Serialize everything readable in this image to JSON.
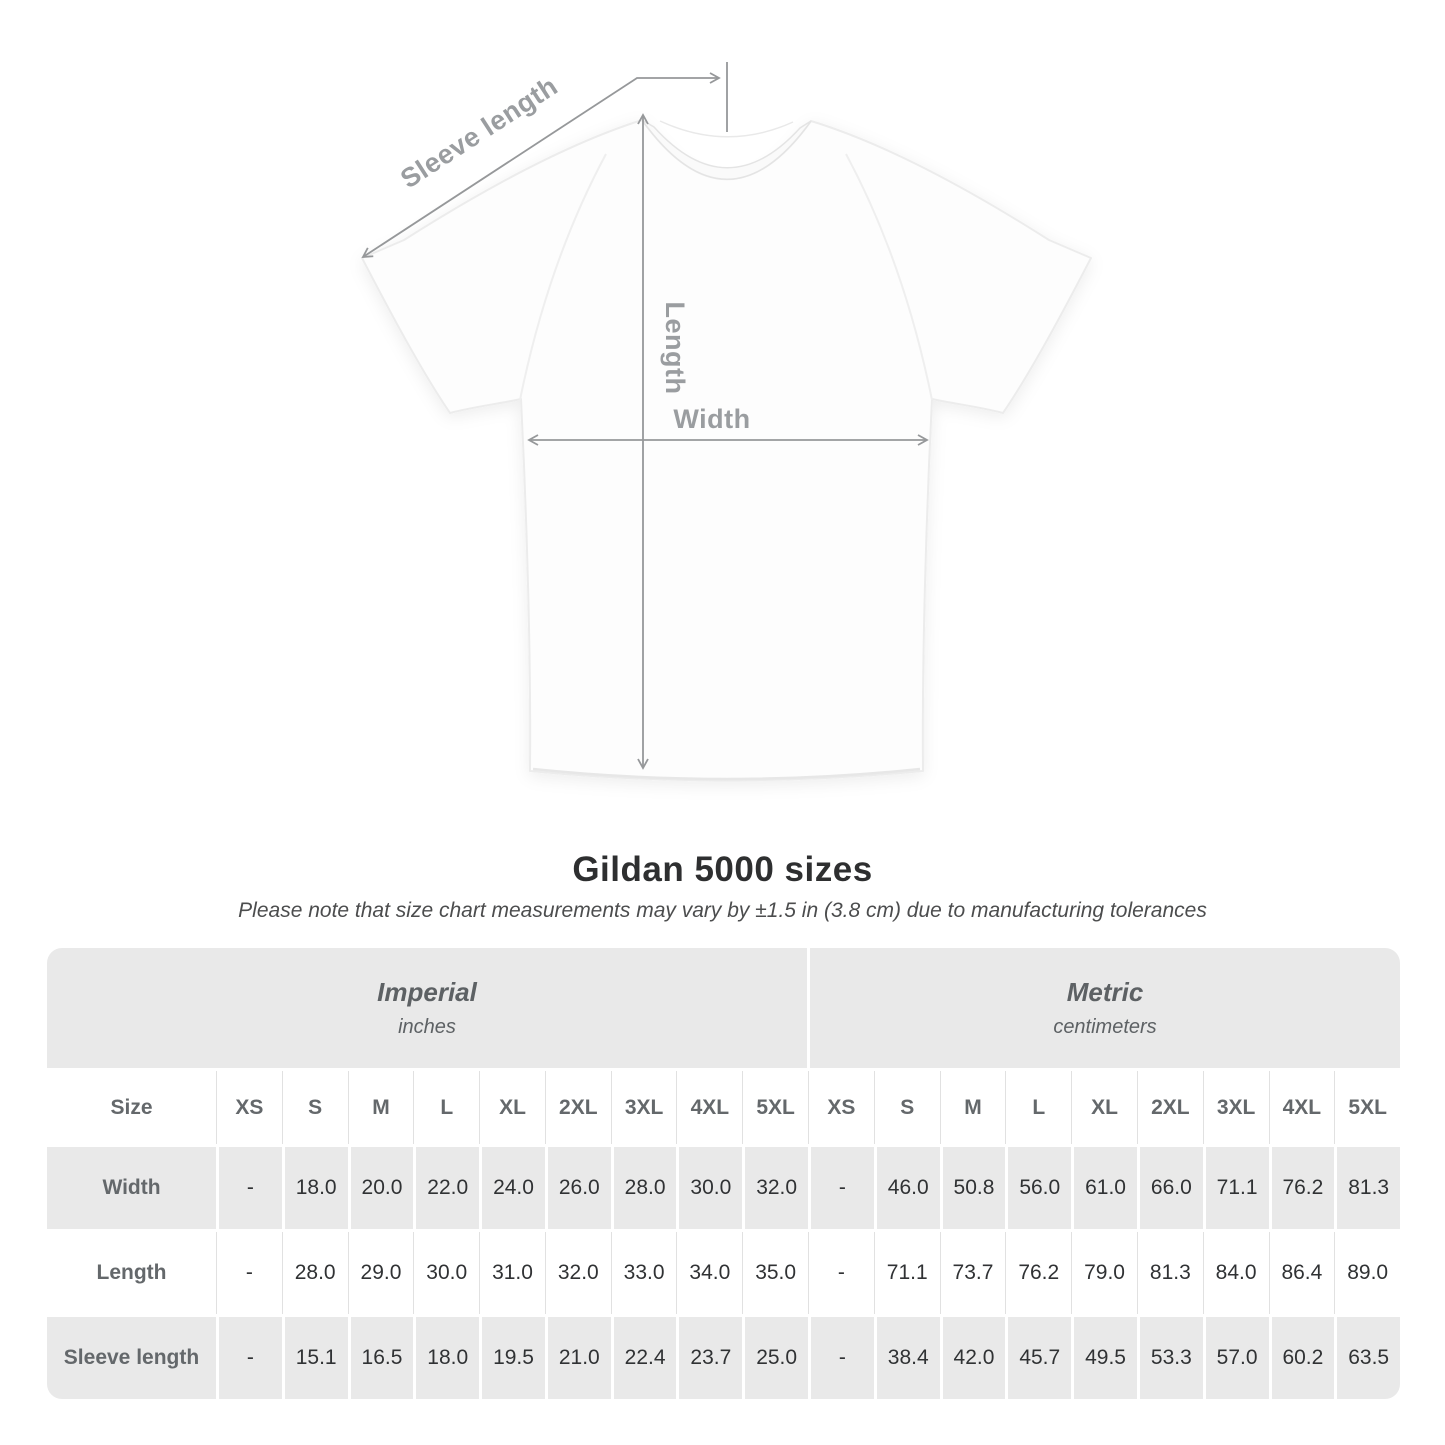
{
  "diagram": {
    "labels": {
      "sleeve_length": "Sleeve length",
      "length": "Length",
      "width": "Width"
    },
    "annotation_color": "#96989a",
    "shirt_fill": "#fdfdfd"
  },
  "heading": {
    "title": "Gildan 5000 sizes",
    "subtitle": "Please note that size chart measurements may vary by ±1.5 in (3.8 cm) due to manufacturing tolerances"
  },
  "table": {
    "unit_groups": [
      {
        "label": "Imperial",
        "unit": "inches"
      },
      {
        "label": "Metric",
        "unit": "centimeters"
      }
    ],
    "size_col_header": "Size",
    "size_headers": [
      "XS",
      "S",
      "M",
      "L",
      "XL",
      "2XL",
      "3XL",
      "4XL",
      "5XL"
    ],
    "rows": [
      {
        "label": "Width",
        "imperial": [
          "-",
          "18.0",
          "20.0",
          "22.0",
          "24.0",
          "26.0",
          "28.0",
          "30.0",
          "32.0"
        ],
        "metric": [
          "-",
          "46.0",
          "50.8",
          "56.0",
          "61.0",
          "66.0",
          "71.1",
          "76.2",
          "81.3"
        ]
      },
      {
        "label": "Length",
        "imperial": [
          "-",
          "28.0",
          "29.0",
          "30.0",
          "31.0",
          "32.0",
          "33.0",
          "34.0",
          "35.0"
        ],
        "metric": [
          "-",
          "71.1",
          "73.7",
          "76.2",
          "79.0",
          "81.3",
          "84.0",
          "86.4",
          "89.0"
        ]
      },
      {
        "label": "Sleeve length",
        "imperial": [
          "-",
          "15.1",
          "16.5",
          "18.0",
          "19.5",
          "21.0",
          "22.4",
          "23.7",
          "25.0"
        ],
        "metric": [
          "-",
          "38.4",
          "42.0",
          "45.7",
          "49.5",
          "53.3",
          "57.0",
          "60.2",
          "63.5"
        ]
      }
    ],
    "colors": {
      "band": "#e9e9e9",
      "header_text": "#64686b",
      "value_text": "#303234"
    }
  }
}
